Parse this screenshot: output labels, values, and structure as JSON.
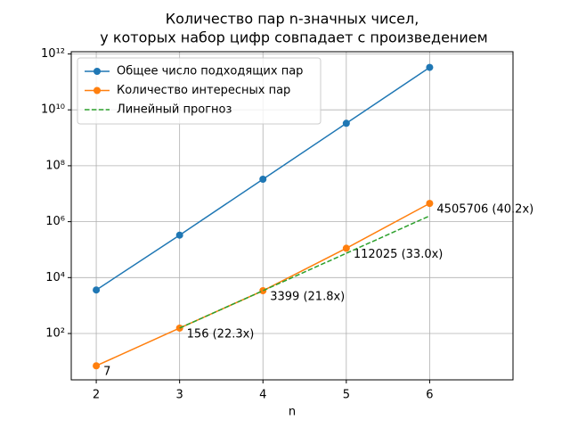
{
  "chart_data": {
    "type": "line",
    "title": "Количество пар n-значных чисел,",
    "subtitle": "у которых набор цифр совпадает с произведением",
    "x_label": "n",
    "x": [
      2,
      3,
      4,
      5,
      6
    ],
    "xlim": [
      1.7,
      7.0
    ],
    "xticks": [
      2,
      3,
      4,
      5,
      6
    ],
    "ylim": [
      2.2,
      1200000000000
    ],
    "log_y": true,
    "yticks": [
      {
        "value": 100,
        "label": "10²"
      },
      {
        "value": 10000,
        "label": "10⁴"
      },
      {
        "value": 1000000,
        "label": "10⁶"
      },
      {
        "value": 100000000,
        "label": "10⁸"
      },
      {
        "value": 10000000000,
        "label": "10¹⁰"
      },
      {
        "value": 1000000000000,
        "label": "10¹²"
      }
    ],
    "grid": true,
    "legend": "upper left",
    "series": [
      {
        "name": "Общее число подходящих пар",
        "color": "#1f77b4",
        "marker": true,
        "linestyle": "solid",
        "values": [
          3600,
          330000,
          33000000,
          3300000000,
          330000000000
        ]
      },
      {
        "name": "Количество интересных пар",
        "color": "#ff7f0e",
        "marker": true,
        "linestyle": "solid",
        "values": [
          7,
          156,
          3399,
          112025,
          4505706
        ],
        "value_labels": [
          "7",
          "156 (22.3x)",
          "3399 (21.8x)",
          "112025 (33.0x)",
          "4505706 (40.2x)"
        ]
      },
      {
        "name": "Линейный прогноз",
        "color": "#2ca02c",
        "marker": false,
        "linestyle": "dashed",
        "values": [
          null,
          156,
          3399,
          74098,
          1615336
        ]
      }
    ]
  }
}
